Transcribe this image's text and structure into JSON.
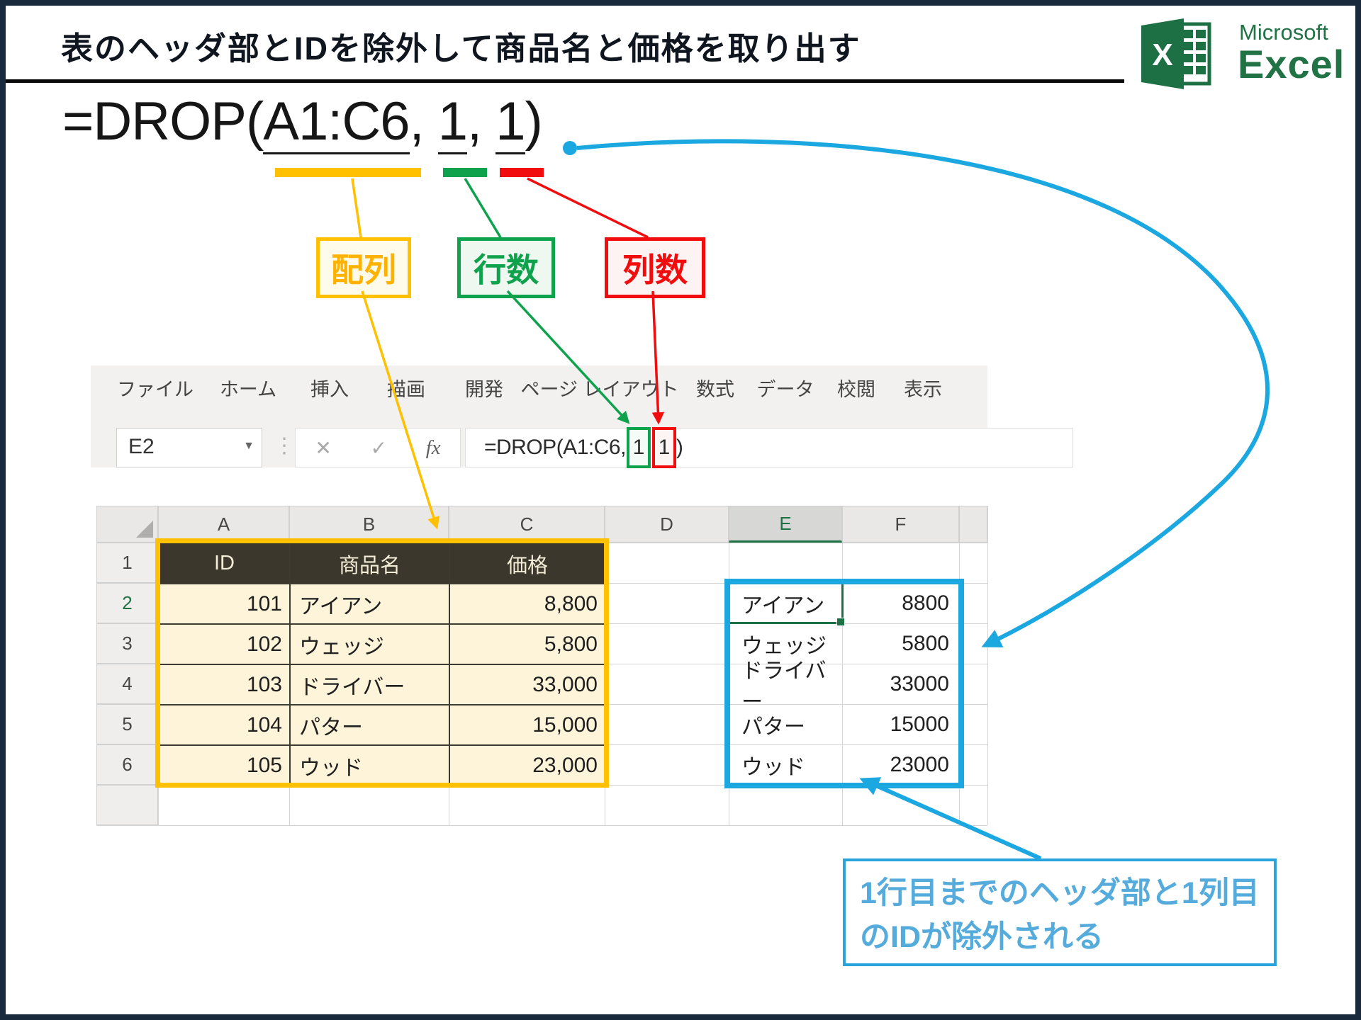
{
  "title": "表のヘッダ部とIDを除外して商品名と価格を取り出す",
  "logo": {
    "icon": "excel-logo",
    "brand_top": "Microsoft",
    "brand_bottom": "Excel"
  },
  "big_formula": {
    "prefix": "=DROP(",
    "array_arg": "A1:C6",
    "comma1": ", ",
    "rows_arg": "1",
    "comma2": ", ",
    "cols_arg": "1",
    "suffix": ")"
  },
  "callouts": {
    "array_label": "配列",
    "rows_label": "行数",
    "cols_label": "列数"
  },
  "excel": {
    "ribbon_tabs": [
      "ファイル",
      "ホーム",
      "挿入",
      "描画",
      "開発",
      "ページ レイアウト",
      "数式",
      "データ",
      "校閲",
      "表示"
    ],
    "name_box_value": "E2",
    "name_box_arrow": "▼",
    "separator_glyph": "⋮",
    "cancel_glyph": "✕",
    "enter_glyph": "✓",
    "fx_label": "fx",
    "formula_bar": {
      "prefix": "=DROP(A1:C6,",
      "rows_arg": "1",
      "cols_arg": "1",
      "suffix": ")"
    },
    "column_letters": [
      "A",
      "B",
      "C",
      "D",
      "E",
      "F"
    ],
    "row_numbers": [
      "1",
      "2",
      "3",
      "4",
      "5",
      "6"
    ],
    "selected_column": "E",
    "selected_row": "2",
    "table": {
      "headers": [
        "ID",
        "商品名",
        "価格"
      ],
      "rows": [
        [
          "101",
          "アイアン",
          "8,800"
        ],
        [
          "102",
          "ウェッジ",
          "5,800"
        ],
        [
          "103",
          "ドライバー",
          "33,000"
        ],
        [
          "104",
          "パター",
          "15,000"
        ],
        [
          "105",
          "ウッド",
          "23,000"
        ]
      ]
    },
    "result": {
      "rows": [
        [
          "アイアン",
          "8800"
        ],
        [
          "ウェッジ",
          "5800"
        ],
        [
          "ドライバー",
          "33000"
        ],
        [
          "パター",
          "15000"
        ],
        [
          "ウッド",
          "23000"
        ]
      ]
    }
  },
  "annotation": {
    "line1": "1行目までのヘッダ部と1列目",
    "line2": "のIDが除外される"
  },
  "colors": {
    "frame": "#182a3c",
    "array_accent": "#FFC000",
    "rows_accent": "#0FA24D",
    "cols_accent": "#F10D0D",
    "pointer_blue": "#1BA7E0",
    "excel_green": "#217346",
    "table_header_bg": "#3b372c",
    "table_cell_bg": "#fdf4da"
  }
}
